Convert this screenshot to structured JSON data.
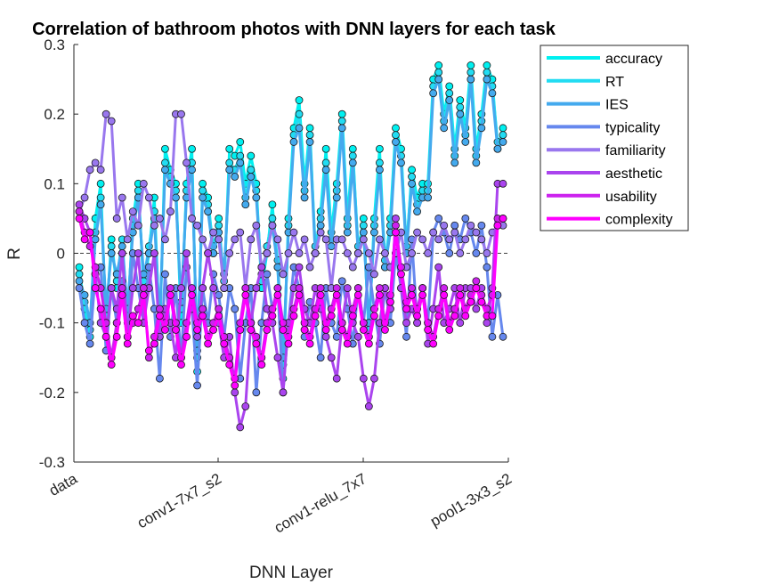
{
  "chart_data": {
    "type": "line",
    "title": "Correlation of bathroom photos with DNN layers for each task",
    "xlabel": "DNN Layer",
    "ylabel": "R",
    "ylim": [
      -0.3,
      0.3
    ],
    "yticks": [
      "-0.3",
      "-0.2",
      "-0.1",
      "0",
      "0.1",
      "0.2",
      "0.3"
    ],
    "xtick_labels": [
      "data",
      "conv1-7x7_s2",
      "conv1-relu_7x7",
      "pool1-3x3_s2"
    ],
    "x": [
      1,
      2,
      3,
      4,
      5,
      6,
      7,
      8,
      9,
      10,
      11,
      12,
      13,
      14,
      15,
      16,
      17,
      18,
      19,
      20,
      21,
      22,
      23,
      24,
      25,
      26,
      27,
      28,
      29,
      30,
      31,
      32,
      33,
      34,
      35,
      36,
      37,
      38,
      39,
      40,
      41,
      42,
      43,
      44,
      45,
      46,
      47,
      48,
      49,
      50,
      51,
      52,
      53,
      54,
      55,
      56,
      57,
      58,
      59,
      60,
      61,
      62,
      63,
      64,
      65,
      66,
      67,
      68,
      69,
      70,
      71,
      72,
      73,
      74,
      75,
      76,
      77,
      78,
      79,
      80
    ],
    "xlim": [
      0,
      81
    ],
    "zero_line": "dashed",
    "legend_position": "top-right",
    "series": [
      {
        "name": "accuracy",
        "color": "#00f0f0",
        "values": [
          -0.02,
          -0.08,
          -0.12,
          0.05,
          0.1,
          -0.1,
          0.02,
          -0.05,
          0.0,
          -0.1,
          0.05,
          0.1,
          -0.05,
          0.0,
          0.08,
          -0.12,
          0.15,
          0.12,
          0.1,
          -0.1,
          0.1,
          0.15,
          -0.17,
          0.1,
          0.08,
          0.0,
          0.05,
          -0.05,
          0.15,
          0.14,
          0.16,
          0.1,
          0.14,
          0.1,
          -0.05,
          0.0,
          0.07,
          -0.02,
          -0.18,
          0.05,
          0.18,
          0.22,
          0.1,
          0.18,
          0.0,
          0.06,
          0.15,
          0.03,
          0.1,
          0.2,
          0.05,
          0.15,
          0.0,
          0.05,
          -0.12,
          0.05,
          0.15,
          -0.02,
          0.05,
          0.18,
          0.15,
          0.0,
          0.12,
          0.08,
          0.1,
          0.1,
          0.25,
          0.27,
          0.2,
          0.24,
          0.15,
          0.22,
          0.18,
          0.27,
          0.15,
          0.2,
          0.27,
          0.25,
          0.15,
          0.18
        ]
      },
      {
        "name": "RT",
        "color": "#22dcf2",
        "values": [
          -0.03,
          -0.07,
          -0.11,
          0.03,
          0.08,
          -0.09,
          0.01,
          -0.04,
          0.02,
          -0.09,
          0.04,
          0.09,
          -0.04,
          0.01,
          0.06,
          -0.11,
          0.13,
          0.11,
          0.09,
          -0.08,
          0.09,
          0.13,
          -0.15,
          0.09,
          0.07,
          0.01,
          0.04,
          -0.04,
          0.13,
          0.12,
          0.14,
          0.08,
          0.12,
          0.09,
          -0.04,
          0.01,
          0.05,
          -0.01,
          -0.16,
          0.04,
          0.17,
          0.2,
          0.09,
          0.17,
          0.01,
          0.05,
          0.13,
          0.02,
          0.09,
          0.19,
          0.04,
          0.14,
          0.01,
          0.04,
          -0.11,
          0.04,
          0.13,
          -0.01,
          0.04,
          0.17,
          0.14,
          0.01,
          0.11,
          0.07,
          0.09,
          0.09,
          0.24,
          0.26,
          0.19,
          0.23,
          0.14,
          0.21,
          0.17,
          0.26,
          0.14,
          0.19,
          0.26,
          0.24,
          0.16,
          0.17
        ]
      },
      {
        "name": "IES",
        "color": "#44aaee",
        "values": [
          -0.04,
          -0.06,
          -0.1,
          0.02,
          0.07,
          -0.08,
          0.0,
          -0.03,
          0.01,
          -0.08,
          0.03,
          0.08,
          -0.03,
          0.0,
          0.05,
          -0.1,
          0.12,
          0.1,
          0.08,
          -0.07,
          0.08,
          0.12,
          -0.14,
          0.08,
          0.06,
          0.0,
          0.03,
          -0.03,
          0.12,
          0.11,
          0.13,
          0.07,
          0.11,
          0.08,
          -0.03,
          0.0,
          0.04,
          -0.02,
          -0.15,
          0.03,
          0.16,
          0.18,
          0.08,
          0.16,
          0.0,
          0.04,
          0.12,
          0.01,
          0.08,
          0.18,
          0.03,
          0.13,
          0.0,
          0.03,
          -0.1,
          0.03,
          0.12,
          -0.02,
          0.03,
          0.16,
          0.13,
          0.0,
          0.1,
          0.06,
          0.08,
          0.08,
          0.23,
          0.25,
          0.18,
          0.22,
          0.13,
          0.2,
          0.16,
          0.25,
          0.13,
          0.18,
          0.25,
          0.23,
          0.15,
          0.16
        ]
      },
      {
        "name": "typicality",
        "color": "#6688ee",
        "values": [
          -0.05,
          -0.1,
          -0.13,
          -0.03,
          -0.02,
          -0.14,
          -0.05,
          -0.1,
          -0.04,
          -0.12,
          0.0,
          -0.05,
          -0.1,
          -0.02,
          -0.08,
          -0.18,
          -0.03,
          -0.12,
          -0.05,
          -0.15,
          -0.02,
          -0.08,
          -0.19,
          -0.05,
          -0.1,
          -0.03,
          -0.06,
          -0.12,
          -0.05,
          -0.08,
          -0.18,
          -0.1,
          -0.05,
          -0.2,
          -0.1,
          -0.03,
          -0.08,
          -0.05,
          -0.2,
          -0.1,
          -0.02,
          -0.05,
          -0.12,
          -0.07,
          -0.1,
          -0.15,
          -0.05,
          -0.1,
          -0.12,
          -0.04,
          -0.08,
          -0.13,
          -0.05,
          -0.1,
          -0.02,
          -0.08,
          -0.13,
          -0.05,
          -0.1,
          0.0,
          -0.05,
          -0.12,
          0.02,
          -0.1,
          -0.05,
          -0.1,
          0.03,
          0.05,
          0.03,
          0.0,
          0.04,
          0.02,
          0.05,
          0.03,
          0.0,
          0.04,
          -0.02,
          -0.12,
          -0.06,
          -0.12
        ]
      },
      {
        "name": "familiarity",
        "color": "#9977ee",
        "values": [
          0.06,
          0.08,
          0.12,
          0.13,
          0.12,
          0.2,
          0.19,
          0.05,
          0.08,
          0.02,
          0.06,
          0.04,
          0.1,
          0.08,
          0.04,
          0.05,
          0.02,
          0.06,
          0.2,
          0.2,
          0.13,
          0.05,
          0.04,
          0.02,
          0.0,
          0.03,
          0.02,
          -0.05,
          0.0,
          0.02,
          0.03,
          -0.05,
          0.02,
          0.04,
          -0.02,
          0.0,
          0.04,
          0.02,
          -0.03,
          0.0,
          0.03,
          0.0,
          0.02,
          -0.02,
          0.0,
          0.03,
          0.02,
          -0.05,
          0.02,
          0.02,
          0.0,
          -0.02,
          0.0,
          0.02,
          0.0,
          -0.03,
          0.02,
          0.0,
          -0.02,
          0.0,
          0.03,
          -0.02,
          0.0,
          0.03,
          0.02,
          0.0,
          0.03,
          0.02,
          0.04,
          0.02,
          0.03,
          0.0,
          0.02,
          0.04,
          0.03,
          0.02,
          0.0,
          0.03,
          0.04,
          0.04
        ]
      },
      {
        "name": "aesthetic",
        "color": "#aa44ee",
        "values": [
          0.07,
          0.05,
          0.03,
          -0.03,
          -0.1,
          -0.12,
          -0.05,
          -0.08,
          0.0,
          -0.12,
          -0.05,
          0.0,
          -0.1,
          -0.05,
          0.0,
          -0.12,
          -0.08,
          -0.1,
          -0.15,
          -0.05,
          0.0,
          -0.08,
          -0.12,
          -0.05,
          0.0,
          -0.05,
          -0.1,
          -0.15,
          -0.12,
          -0.2,
          -0.25,
          -0.22,
          -0.1,
          -0.05,
          -0.02,
          -0.08,
          -0.1,
          -0.15,
          -0.2,
          -0.1,
          -0.05,
          -0.02,
          -0.08,
          -0.1,
          -0.05,
          -0.08,
          -0.12,
          -0.15,
          -0.18,
          -0.1,
          -0.05,
          -0.1,
          -0.12,
          -0.18,
          -0.22,
          -0.18,
          -0.1,
          -0.05,
          -0.08,
          0.05,
          -0.05,
          -0.1,
          -0.08,
          -0.1,
          -0.05,
          -0.13,
          -0.08,
          -0.02,
          -0.1,
          -0.08,
          -0.05,
          -0.1,
          -0.05,
          -0.05,
          -0.08,
          -0.05,
          -0.1,
          -0.05,
          0.1,
          0.1
        ]
      },
      {
        "name": "usability",
        "color": "#cc22ee",
        "values": [
          0.06,
          0.03,
          0.01,
          -0.02,
          -0.05,
          -0.1,
          -0.15,
          -0.1,
          -0.05,
          -0.12,
          -0.1,
          -0.08,
          -0.05,
          -0.15,
          -0.12,
          -0.08,
          -0.1,
          -0.05,
          -0.1,
          -0.15,
          -0.1,
          -0.05,
          -0.1,
          -0.08,
          -0.12,
          -0.1,
          -0.08,
          -0.12,
          -0.15,
          -0.18,
          -0.1,
          -0.05,
          -0.1,
          -0.12,
          -0.15,
          -0.1,
          -0.08,
          -0.05,
          -0.1,
          -0.12,
          -0.08,
          -0.05,
          -0.1,
          -0.12,
          -0.08,
          -0.05,
          -0.1,
          -0.08,
          -0.05,
          -0.1,
          -0.12,
          -0.08,
          -0.05,
          -0.1,
          -0.12,
          -0.08,
          -0.05,
          -0.1,
          -0.06,
          0.04,
          -0.02,
          -0.07,
          -0.05,
          -0.08,
          -0.05,
          -0.1,
          -0.12,
          -0.08,
          -0.05,
          -0.1,
          -0.08,
          -0.05,
          -0.08,
          -0.06,
          -0.04,
          -0.06,
          -0.08,
          -0.06,
          0.05,
          0.05
        ]
      },
      {
        "name": "complexity",
        "color": "#ff00ff",
        "values": [
          0.05,
          0.02,
          0.03,
          -0.05,
          -0.08,
          -0.12,
          -0.16,
          -0.12,
          -0.06,
          -0.13,
          -0.09,
          -0.1,
          -0.06,
          -0.14,
          -0.13,
          -0.09,
          -0.11,
          -0.06,
          -0.11,
          -0.16,
          -0.12,
          -0.06,
          -0.11,
          -0.09,
          -0.13,
          -0.11,
          -0.09,
          -0.13,
          -0.16,
          -0.19,
          -0.11,
          -0.06,
          -0.11,
          -0.13,
          -0.16,
          -0.11,
          -0.09,
          -0.06,
          -0.11,
          -0.13,
          -0.09,
          -0.06,
          -0.11,
          -0.13,
          -0.09,
          -0.06,
          -0.11,
          -0.09,
          -0.06,
          -0.11,
          -0.13,
          -0.09,
          -0.06,
          -0.11,
          -0.13,
          -0.09,
          -0.06,
          -0.11,
          -0.07,
          0.03,
          -0.03,
          -0.08,
          -0.06,
          -0.09,
          -0.06,
          -0.11,
          -0.13,
          -0.09,
          -0.06,
          -0.11,
          -0.09,
          -0.06,
          -0.09,
          -0.07,
          -0.05,
          -0.07,
          -0.09,
          -0.09,
          0.04,
          0.05
        ]
      }
    ]
  }
}
